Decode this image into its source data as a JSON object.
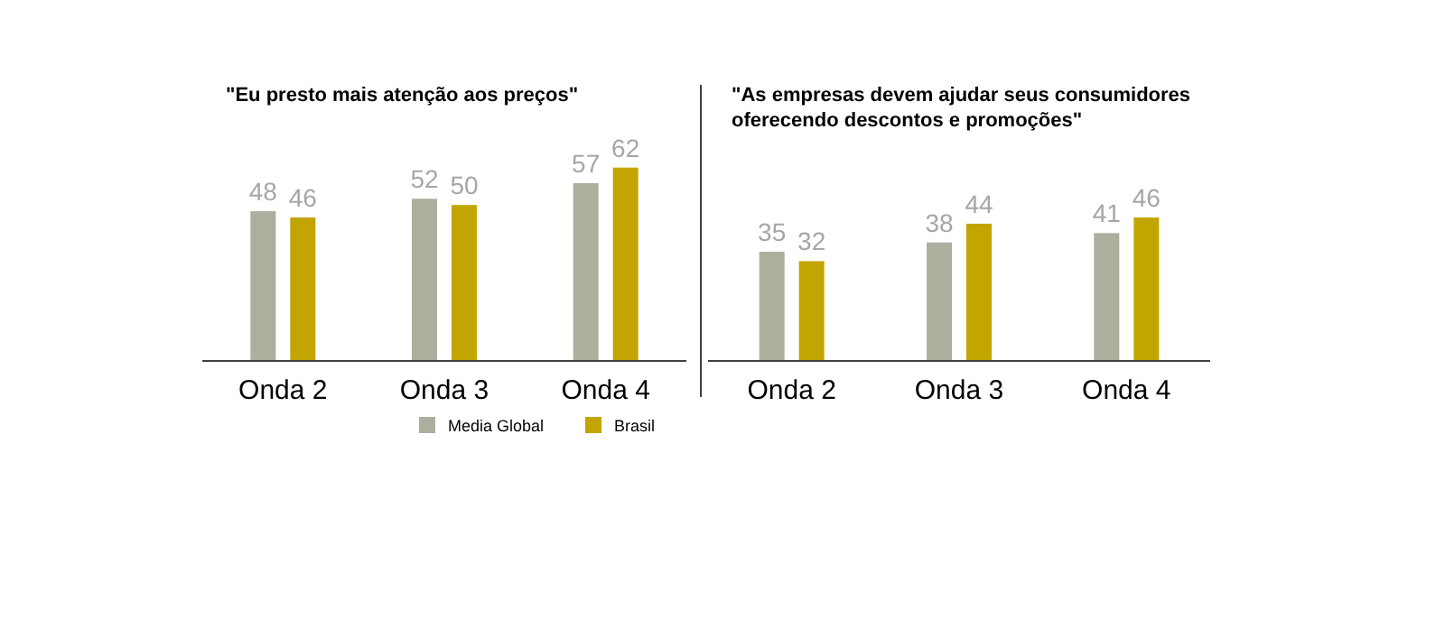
{
  "chart_data": [
    {
      "type": "bar",
      "title": "\"Eu presto mais atenção aos preços\"",
      "categories": [
        "Onda 2",
        "Onda 3",
        "Onda 4"
      ],
      "series": [
        {
          "name": "Media Global",
          "color": "#aeae9f",
          "values": [
            48,
            52,
            57
          ]
        },
        {
          "name": "Brasil",
          "color": "#c2a500",
          "values": [
            46,
            50,
            62
          ]
        }
      ],
      "data_labels": true,
      "legend": "bottom"
    },
    {
      "type": "bar",
      "title": "\"As empresas devem ajudar seus consumidores\noferecendo descontos e promoções\"",
      "categories": [
        "Onda 2",
        "Onda 3",
        "Onda 4"
      ],
      "series": [
        {
          "color": "#aeae9f",
          "values": [
            35,
            38,
            41
          ]
        },
        {
          "color": "#c2a500",
          "values": [
            32,
            44,
            46
          ]
        }
      ],
      "data_labels": true
    }
  ]
}
